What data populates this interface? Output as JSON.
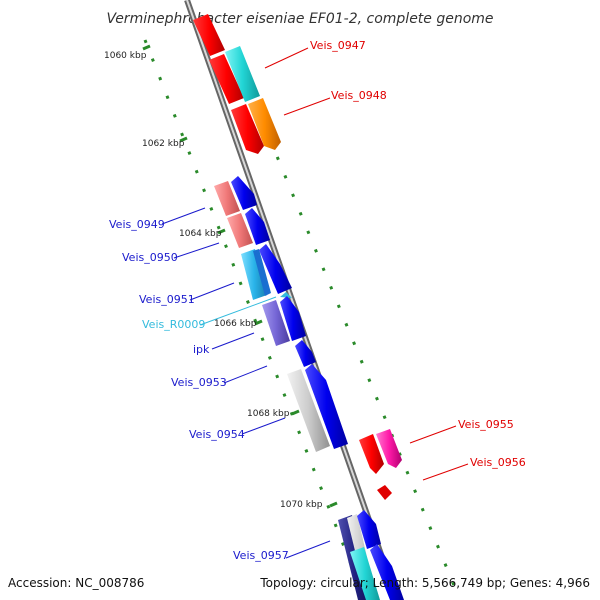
{
  "title": "Verminephrobacter eiseniae EF01-2, complete genome",
  "footer": {
    "accession": "Accession: NC_008786",
    "summary": "Topology: circular; Length: 5,566,749 bp; Genes: 4,966"
  },
  "ticks": [
    "1060 kbp",
    "1062 kbp",
    "1064 kbp",
    "1066 kbp",
    "1068 kbp",
    "1070 kbp"
  ],
  "genes": [
    {
      "name": "Veis_0947",
      "color": "#e00000"
    },
    {
      "name": "Veis_0948",
      "color": "#e00000"
    },
    {
      "name": "Veis_0949",
      "color": "#1a1acc"
    },
    {
      "name": "Veis_0950",
      "color": "#1a1acc"
    },
    {
      "name": "Veis_0951",
      "color": "#1a1acc"
    },
    {
      "name": "Veis_R0009",
      "color": "#33bbdd"
    },
    {
      "name": "ipk",
      "color": "#1a1acc"
    },
    {
      "name": "Veis_0953",
      "color": "#1a1acc"
    },
    {
      "name": "Veis_0954",
      "color": "#1a1acc"
    },
    {
      "name": "Veis_0955",
      "color": "#e00000"
    },
    {
      "name": "Veis_0956",
      "color": "#e00000"
    },
    {
      "name": "Veis_0957",
      "color": "#1a1acc"
    }
  ],
  "colors": {
    "backbone": "#888888",
    "tick_dots": "#2a8a2a",
    "forward": "#ee0000",
    "reverse": "#1111dd"
  }
}
